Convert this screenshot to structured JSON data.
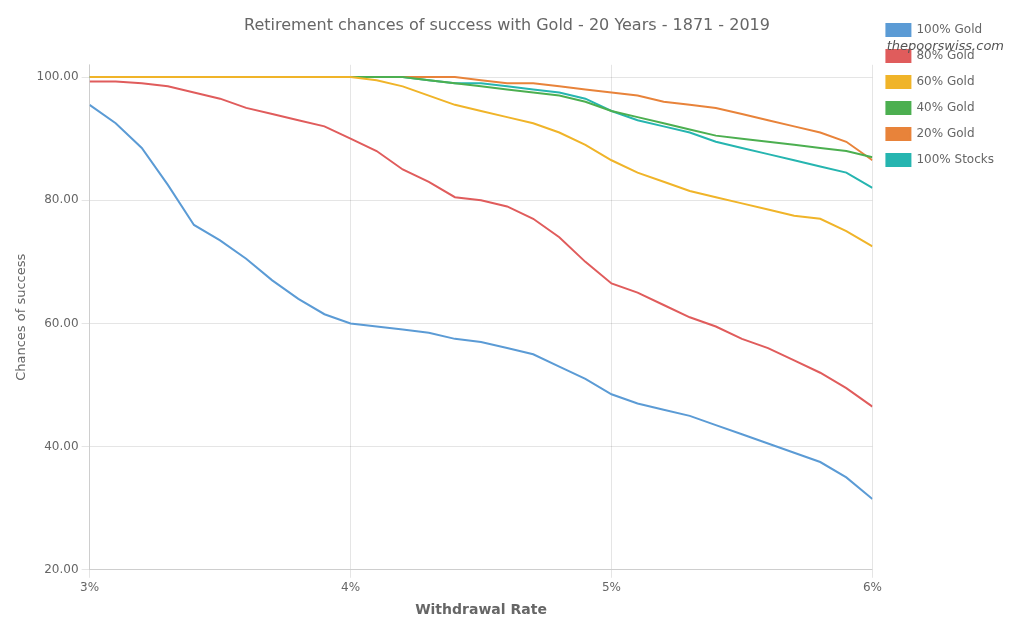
{
  "chart_data": {
    "type": "line",
    "title": "Retirement chances of success with Gold - 20 Years - 1871 - 2019",
    "xlabel": "Withdrawal Rate",
    "ylabel": "Chances of success",
    "annotations": [
      "thepoorswiss.com"
    ],
    "x": [
      3.0,
      3.1,
      3.2,
      3.3,
      3.4,
      3.5,
      3.6,
      3.7,
      3.8,
      3.9,
      4.0,
      4.1,
      4.2,
      4.3,
      4.4,
      4.5,
      4.6,
      4.7,
      4.8,
      4.9,
      5.0,
      5.1,
      5.2,
      5.3,
      5.4,
      5.5,
      5.6,
      5.7,
      5.8,
      5.9,
      6.0
    ],
    "xlim": [
      3.0,
      6.0
    ],
    "xticks": [
      {
        "value": 3,
        "label": "3%"
      },
      {
        "value": 4,
        "label": "4%"
      },
      {
        "value": 5,
        "label": "5%"
      },
      {
        "value": 6,
        "label": "6%"
      }
    ],
    "ylim": [
      20,
      102
    ],
    "yticks": [
      {
        "value": 20,
        "label": "20.00"
      },
      {
        "value": 40,
        "label": "40.00"
      },
      {
        "value": 60,
        "label": "60.00"
      },
      {
        "value": 80,
        "label": "80.00"
      },
      {
        "value": 100,
        "label": "100.00"
      }
    ],
    "grid": true,
    "legend": "right",
    "series": [
      {
        "name": "100% Gold",
        "color": "#5b9bd5",
        "values": [
          95.5,
          92.5,
          88.5,
          82.5,
          76.0,
          73.5,
          70.5,
          67.0,
          64.0,
          61.5,
          60.0,
          59.5,
          59.0,
          58.5,
          57.5,
          57.0,
          56.0,
          55.0,
          53.0,
          51.0,
          48.5,
          47.0,
          46.0,
          45.0,
          43.5,
          42.0,
          40.5,
          39.0,
          37.5,
          35.0,
          31.5
        ]
      },
      {
        "name": "80% Gold",
        "color": "#e05c5c",
        "values": [
          99.3,
          99.3,
          99.0,
          98.5,
          97.5,
          96.5,
          95.0,
          94.0,
          93.0,
          92.0,
          90.0,
          88.0,
          85.0,
          83.0,
          80.5,
          80.0,
          79.0,
          77.0,
          74.0,
          70.0,
          66.5,
          65.0,
          63.0,
          61.0,
          59.5,
          57.5,
          56.0,
          54.0,
          52.0,
          49.5,
          46.5
        ]
      },
      {
        "name": "60% Gold",
        "color": "#f0b429",
        "values": [
          100.0,
          100.0,
          100.0,
          100.0,
          100.0,
          100.0,
          100.0,
          100.0,
          100.0,
          100.0,
          100.0,
          99.5,
          98.5,
          97.0,
          95.5,
          94.5,
          93.5,
          92.5,
          91.0,
          89.0,
          86.5,
          84.5,
          83.0,
          81.5,
          80.5,
          79.5,
          78.5,
          77.5,
          77.0,
          75.0,
          72.5
        ]
      },
      {
        "name": "40% Gold",
        "color": "#4caf50",
        "values": [
          100.0,
          100.0,
          100.0,
          100.0,
          100.0,
          100.0,
          100.0,
          100.0,
          100.0,
          100.0,
          100.0,
          100.0,
          100.0,
          99.5,
          99.0,
          98.5,
          98.0,
          97.5,
          97.0,
          96.0,
          94.5,
          93.5,
          92.5,
          91.5,
          90.5,
          90.0,
          89.5,
          89.0,
          88.5,
          88.0,
          87.0
        ]
      },
      {
        "name": "20% Gold",
        "color": "#e8833a",
        "values": [
          100.0,
          100.0,
          100.0,
          100.0,
          100.0,
          100.0,
          100.0,
          100.0,
          100.0,
          100.0,
          100.0,
          100.0,
          100.0,
          100.0,
          100.0,
          99.5,
          99.0,
          99.0,
          98.5,
          98.0,
          97.5,
          97.0,
          96.0,
          95.5,
          95.0,
          94.0,
          93.0,
          92.0,
          91.0,
          89.5,
          86.5
        ]
      },
      {
        "name": "100% Stocks",
        "color": "#26b5b0",
        "values": [
          100.0,
          100.0,
          100.0,
          100.0,
          100.0,
          100.0,
          100.0,
          100.0,
          100.0,
          100.0,
          100.0,
          100.0,
          100.0,
          99.5,
          99.0,
          99.0,
          98.5,
          98.0,
          97.5,
          96.5,
          94.5,
          93.0,
          92.0,
          91.0,
          89.5,
          88.5,
          87.5,
          86.5,
          85.5,
          84.5,
          82.0
        ]
      }
    ]
  }
}
